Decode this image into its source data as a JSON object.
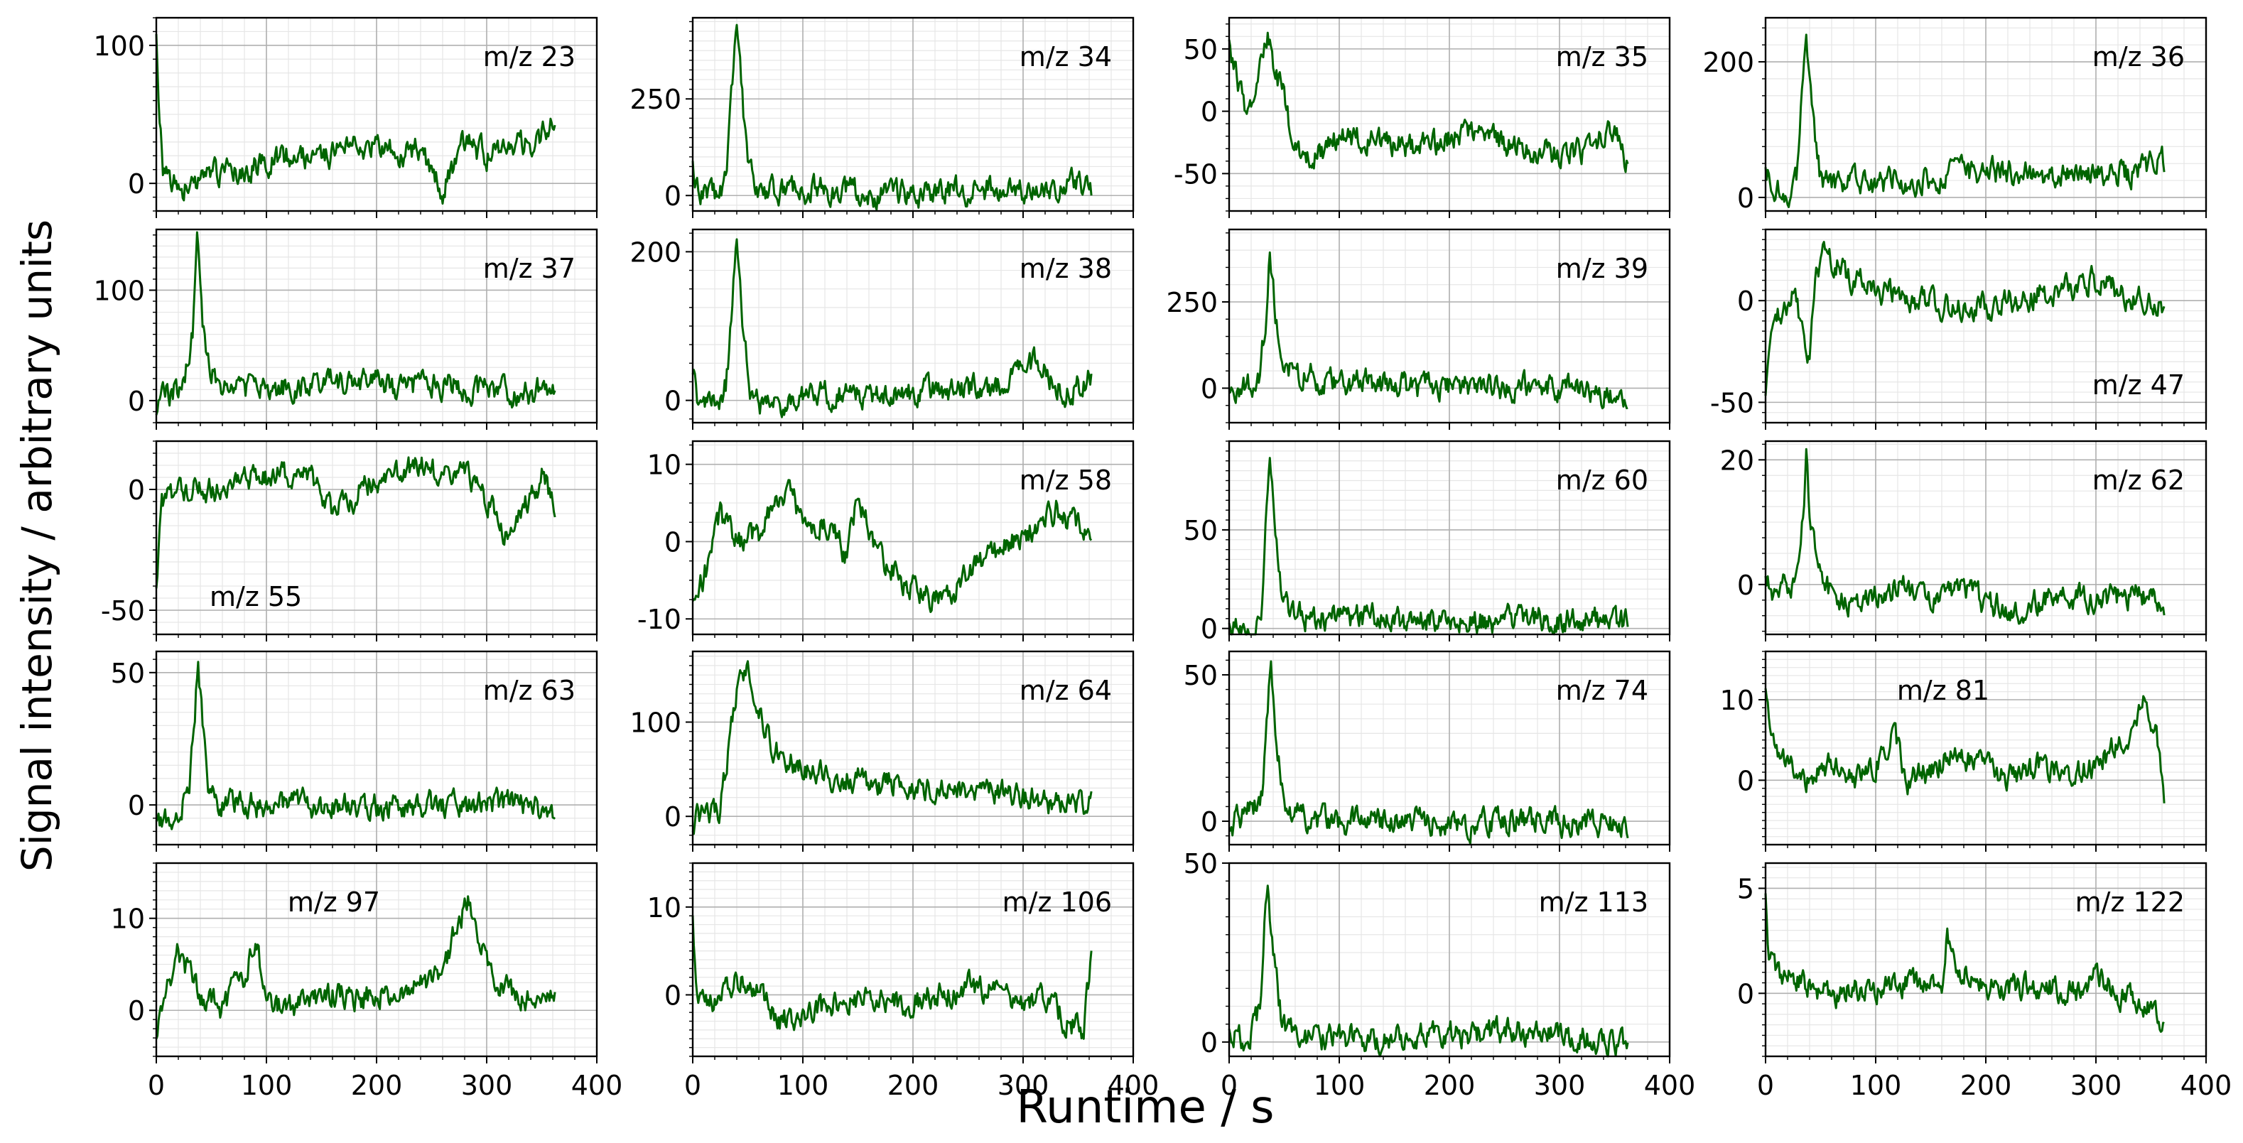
{
  "figure": {
    "xlabel": "Runtime / s",
    "ylabel": "Signal intensity / arbitrary units",
    "line_color": "#006400",
    "grid": true,
    "minor_grid": true
  },
  "chart_data": [
    {
      "type": "line",
      "label": "m/z 23",
      "label_pos": "top-right",
      "xlim": [
        0,
        400
      ],
      "ylim": [
        -20,
        120
      ],
      "yticks": [
        0,
        100
      ],
      "show_xticks": false,
      "seed": 23,
      "x": [
        0,
        3,
        6,
        15,
        30,
        45,
        60,
        80,
        100,
        120,
        140,
        160,
        180,
        200,
        220,
        240,
        260,
        280,
        300,
        320,
        340,
        355,
        362
      ],
      "y": [
        115,
        40,
        10,
        0,
        -5,
        5,
        8,
        10,
        15,
        20,
        18,
        22,
        25,
        28,
        20,
        25,
        -5,
        30,
        20,
        25,
        30,
        35,
        45
      ]
    },
    {
      "type": "line",
      "label": "m/z 34",
      "label_pos": "top-right",
      "xlim": [
        0,
        400
      ],
      "ylim": [
        -40,
        460
      ],
      "yticks": [
        0,
        250
      ],
      "show_xticks": false,
      "seed": 34,
      "x": [
        0,
        5,
        20,
        30,
        36,
        40,
        45,
        50,
        60,
        80,
        120,
        160,
        200,
        240,
        280,
        320,
        350,
        362
      ],
      "y": [
        70,
        5,
        0,
        40,
        300,
        440,
        250,
        60,
        10,
        10,
        15,
        5,
        0,
        10,
        20,
        15,
        30,
        5
      ]
    },
    {
      "type": "line",
      "label": "m/z 35",
      "label_pos": "top-right",
      "xlim": [
        0,
        400
      ],
      "ylim": [
        -80,
        75
      ],
      "yticks": [
        -50,
        0,
        50
      ],
      "show_xticks": false,
      "seed": 35,
      "x": [
        0,
        5,
        15,
        25,
        35,
        40,
        50,
        60,
        80,
        100,
        140,
        180,
        220,
        260,
        300,
        330,
        350,
        362
      ],
      "y": [
        50,
        35,
        0,
        20,
        65,
        40,
        10,
        -30,
        -35,
        -20,
        -25,
        -30,
        -15,
        -30,
        -35,
        -30,
        -10,
        -45
      ]
    },
    {
      "type": "line",
      "label": "m/z 36",
      "label_pos": "top-right",
      "xlim": [
        0,
        400
      ],
      "ylim": [
        -20,
        265
      ],
      "yticks": [
        0,
        200
      ],
      "show_xticks": false,
      "seed": 36,
      "x": [
        0,
        5,
        20,
        28,
        33,
        37,
        42,
        50,
        60,
        100,
        160,
        200,
        240,
        280,
        330,
        362
      ],
      "y": [
        60,
        10,
        5,
        30,
        150,
        250,
        120,
        30,
        20,
        20,
        30,
        40,
        35,
        30,
        35,
        55
      ]
    },
    {
      "type": "line",
      "label": "m/z 37",
      "label_pos": "top-right",
      "xlim": [
        0,
        400
      ],
      "ylim": [
        -20,
        155
      ],
      "yticks": [
        0,
        100
      ],
      "show_xticks": false,
      "seed": 37,
      "x": [
        0,
        10,
        25,
        33,
        37,
        42,
        48,
        60,
        100,
        140,
        180,
        220,
        260,
        300,
        340,
        362
      ],
      "y": [
        -5,
        5,
        15,
        60,
        150,
        70,
        30,
        15,
        10,
        15,
        20,
        10,
        15,
        10,
        5,
        15
      ]
    },
    {
      "type": "line",
      "label": "m/z 38",
      "label_pos": "top-right",
      "xlim": [
        0,
        400
      ],
      "ylim": [
        -30,
        230
      ],
      "yticks": [
        0,
        200
      ],
      "show_xticks": false,
      "seed": 38,
      "x": [
        0,
        5,
        20,
        30,
        36,
        40,
        45,
        52,
        60,
        100,
        160,
        200,
        240,
        280,
        310,
        340,
        362
      ],
      "y": [
        45,
        0,
        -5,
        20,
        120,
        220,
        110,
        20,
        -5,
        5,
        10,
        10,
        15,
        20,
        50,
        10,
        30
      ]
    },
    {
      "type": "line",
      "label": "m/z 39",
      "label_pos": "top-right",
      "xlim": [
        0,
        400
      ],
      "ylim": [
        -100,
        460
      ],
      "yticks": [
        0,
        250
      ],
      "show_xticks": false,
      "seed": 39,
      "x": [
        0,
        10,
        20,
        28,
        33,
        37,
        42,
        50,
        60,
        100,
        140,
        160,
        200,
        240,
        280,
        320,
        362
      ],
      "y": [
        10,
        0,
        10,
        30,
        200,
        400,
        220,
        70,
        40,
        20,
        10,
        0,
        10,
        0,
        5,
        -10,
        -25
      ]
    },
    {
      "type": "line",
      "label": "m/z 47",
      "label_pos": "bottom-right",
      "xlim": [
        0,
        400
      ],
      "ylim": [
        -60,
        35
      ],
      "yticks": [
        -50,
        0
      ],
      "show_xticks": false,
      "seed": 47,
      "x": [
        0,
        5,
        15,
        25,
        35,
        40,
        45,
        55,
        60,
        80,
        100,
        140,
        180,
        220,
        260,
        300,
        340,
        362
      ],
      "y": [
        -50,
        -15,
        -5,
        5,
        -20,
        -30,
        10,
        25,
        20,
        10,
        5,
        0,
        -5,
        0,
        5,
        10,
        0,
        -5
      ]
    },
    {
      "type": "line",
      "label": "m/z 55",
      "label_pos": "bottom-left",
      "xlim": [
        0,
        400
      ],
      "ylim": [
        -60,
        20
      ],
      "yticks": [
        -50,
        0
      ],
      "show_xticks": false,
      "seed": 55,
      "x": [
        0,
        5,
        20,
        60,
        100,
        140,
        160,
        200,
        240,
        260,
        280,
        300,
        320,
        330,
        350,
        362
      ],
      "y": [
        -40,
        -5,
        0,
        0,
        5,
        5,
        -10,
        5,
        10,
        5,
        10,
        -5,
        -20,
        -10,
        5,
        -5
      ]
    },
    {
      "type": "line",
      "label": "m/z 58",
      "label_pos": "top-right",
      "xlim": [
        0,
        400
      ],
      "ylim": [
        -12,
        13
      ],
      "yticks": [
        -10,
        0,
        10
      ],
      "show_xticks": false,
      "seed": 58,
      "x": [
        0,
        10,
        25,
        40,
        60,
        75,
        90,
        100,
        120,
        140,
        150,
        170,
        190,
        210,
        230,
        250,
        270,
        290,
        310,
        330,
        350,
        362
      ],
      "y": [
        -8,
        -5,
        3,
        0,
        1,
        5,
        6,
        2,
        3,
        -2,
        6,
        -2,
        -5,
        -7,
        -8,
        -4,
        -2,
        0,
        2,
        4,
        2,
        1
      ]
    },
    {
      "type": "line",
      "label": "m/z 60",
      "label_pos": "top-right",
      "xlim": [
        0,
        400
      ],
      "ylim": [
        -3,
        95
      ],
      "yticks": [
        0,
        50
      ],
      "show_xticks": false,
      "seed": 60,
      "x": [
        0,
        10,
        25,
        30,
        34,
        37,
        42,
        50,
        60,
        80,
        120,
        160,
        200,
        240,
        280,
        320,
        362
      ],
      "y": [
        0,
        1,
        3,
        15,
        60,
        90,
        40,
        12,
        6,
        5,
        6,
        4,
        4,
        4,
        5,
        4,
        3
      ]
    },
    {
      "type": "line",
      "label": "m/z 62",
      "label_pos": "top-right",
      "xlim": [
        0,
        400
      ],
      "ylim": [
        -8,
        23
      ],
      "yticks": [
        0,
        20
      ],
      "show_xticks": false,
      "seed": 62,
      "x": [
        0,
        10,
        25,
        32,
        37,
        40,
        45,
        52,
        60,
        80,
        100,
        120,
        150,
        180,
        200,
        230,
        260,
        300,
        340,
        362
      ],
      "y": [
        0,
        -1,
        0,
        5,
        20,
        12,
        5,
        2,
        -2,
        -3,
        -2,
        0,
        -2,
        -1,
        -3,
        -4,
        -2,
        -2,
        -2,
        -3
      ]
    },
    {
      "type": "line",
      "label": "m/z 63",
      "label_pos": "top-right",
      "xlim": [
        0,
        400
      ],
      "ylim": [
        -15,
        58
      ],
      "yticks": [
        0,
        50
      ],
      "show_xticks": false,
      "seed": 63,
      "x": [
        0,
        5,
        20,
        30,
        35,
        38,
        42,
        48,
        60,
        100,
        140,
        180,
        220,
        260,
        300,
        340,
        362
      ],
      "y": [
        -10,
        -5,
        -2,
        5,
        35,
        55,
        30,
        5,
        0,
        0,
        0,
        -1,
        0,
        0,
        0,
        0,
        -5
      ]
    },
    {
      "type": "line",
      "label": "m/z 64",
      "label_pos": "top-right",
      "xlim": [
        0,
        400
      ],
      "ylim": [
        -30,
        175
      ],
      "yticks": [
        0,
        100
      ],
      "show_xticks": false,
      "seed": 64,
      "x": [
        0,
        10,
        25,
        35,
        40,
        50,
        60,
        70,
        80,
        100,
        140,
        180,
        220,
        260,
        300,
        340,
        362
      ],
      "y": [
        -5,
        0,
        5,
        90,
        140,
        160,
        120,
        80,
        60,
        50,
        40,
        35,
        30,
        25,
        20,
        10,
        15
      ]
    },
    {
      "type": "line",
      "label": "m/z 74",
      "label_pos": "top-right",
      "xlim": [
        0,
        400
      ],
      "ylim": [
        -8,
        58
      ],
      "yticks": [
        0,
        50
      ],
      "show_xticks": false,
      "seed": 74,
      "x": [
        0,
        5,
        15,
        25,
        30,
        35,
        38,
        42,
        48,
        55,
        70,
        100,
        140,
        180,
        220,
        260,
        300,
        340,
        362
      ],
      "y": [
        -5,
        0,
        3,
        5,
        10,
        40,
        55,
        30,
        10,
        3,
        1,
        0,
        0,
        0,
        -1,
        0,
        0,
        -1,
        -2
      ]
    },
    {
      "type": "line",
      "label": "m/z 81",
      "label_pos": "top-center",
      "xlim": [
        0,
        400
      ],
      "ylim": [
        -8,
        16
      ],
      "yticks": [
        0,
        10
      ],
      "show_xticks": false,
      "seed": 81,
      "x": [
        0,
        5,
        20,
        40,
        60,
        80,
        100,
        115,
        130,
        150,
        170,
        190,
        210,
        230,
        250,
        270,
        290,
        310,
        330,
        345,
        355,
        362
      ],
      "y": [
        12,
        5,
        2,
        0,
        2,
        0,
        2,
        6,
        0,
        1,
        4,
        2,
        1,
        0,
        2,
        0,
        1,
        3,
        6,
        10,
        5,
        -2
      ]
    },
    {
      "type": "line",
      "label": "m/z 97",
      "label_pos": "top-center",
      "xlim": [
        0,
        400
      ],
      "ylim": [
        -5,
        16
      ],
      "yticks": [
        0,
        10
      ],
      "show_xticks": true,
      "xticks": [
        0,
        100,
        200,
        300,
        400
      ],
      "seed": 97,
      "x": [
        0,
        10,
        20,
        40,
        60,
        80,
        90,
        100,
        120,
        140,
        160,
        180,
        200,
        220,
        240,
        260,
        275,
        285,
        295,
        305,
        320,
        340,
        362
      ],
      "y": [
        -3,
        2,
        6,
        2,
        0,
        4,
        8,
        1,
        0,
        1,
        2,
        1,
        2,
        2,
        3,
        4,
        10,
        12,
        7,
        3,
        2,
        1,
        1
      ]
    },
    {
      "type": "line",
      "label": "m/z 106",
      "label_pos": "top-right",
      "xlim": [
        0,
        400
      ],
      "ylim": [
        -7,
        15
      ],
      "yticks": [
        0,
        10
      ],
      "show_xticks": true,
      "xticks": [
        0,
        100,
        200,
        300,
        400
      ],
      "seed": 106,
      "x": [
        0,
        3,
        10,
        25,
        40,
        60,
        80,
        100,
        130,
        160,
        190,
        220,
        250,
        280,
        300,
        320,
        340,
        355,
        362
      ],
      "y": [
        10,
        0,
        -1,
        0,
        2,
        0,
        -3,
        -2,
        -1,
        0,
        -1,
        0,
        1,
        0,
        -1,
        0,
        -3,
        -4,
        4
      ]
    },
    {
      "type": "line",
      "label": "m/z 113",
      "label_pos": "top-right",
      "xlim": [
        0,
        400
      ],
      "ylim": [
        -4,
        50
      ],
      "yticks": [
        0,
        50
      ],
      "show_xticks": true,
      "xticks": [
        0,
        100,
        200,
        300,
        400
      ],
      "seed": 113,
      "x": [
        0,
        10,
        20,
        28,
        32,
        35,
        40,
        48,
        60,
        100,
        140,
        180,
        220,
        250,
        280,
        320,
        362
      ],
      "y": [
        3,
        1,
        2,
        10,
        35,
        45,
        25,
        5,
        2,
        1,
        1,
        2,
        2,
        3,
        2,
        1,
        -1
      ]
    },
    {
      "type": "line",
      "label": "m/z 122",
      "label_pos": "top-right",
      "xlim": [
        0,
        400
      ],
      "ylim": [
        -3,
        6.2
      ],
      "yticks": [
        0,
        5
      ],
      "show_xticks": true,
      "xticks": [
        0,
        100,
        200,
        300,
        400
      ],
      "seed": 122,
      "x": [
        0,
        3,
        10,
        30,
        60,
        100,
        130,
        160,
        165,
        175,
        200,
        230,
        260,
        290,
        300,
        320,
        340,
        362
      ],
      "y": [
        5,
        2,
        1,
        0.5,
        0,
        0.2,
        0.5,
        0,
        3,
        1,
        0.5,
        0.2,
        0.3,
        0,
        1,
        0,
        -0.5,
        -1.5
      ]
    }
  ]
}
